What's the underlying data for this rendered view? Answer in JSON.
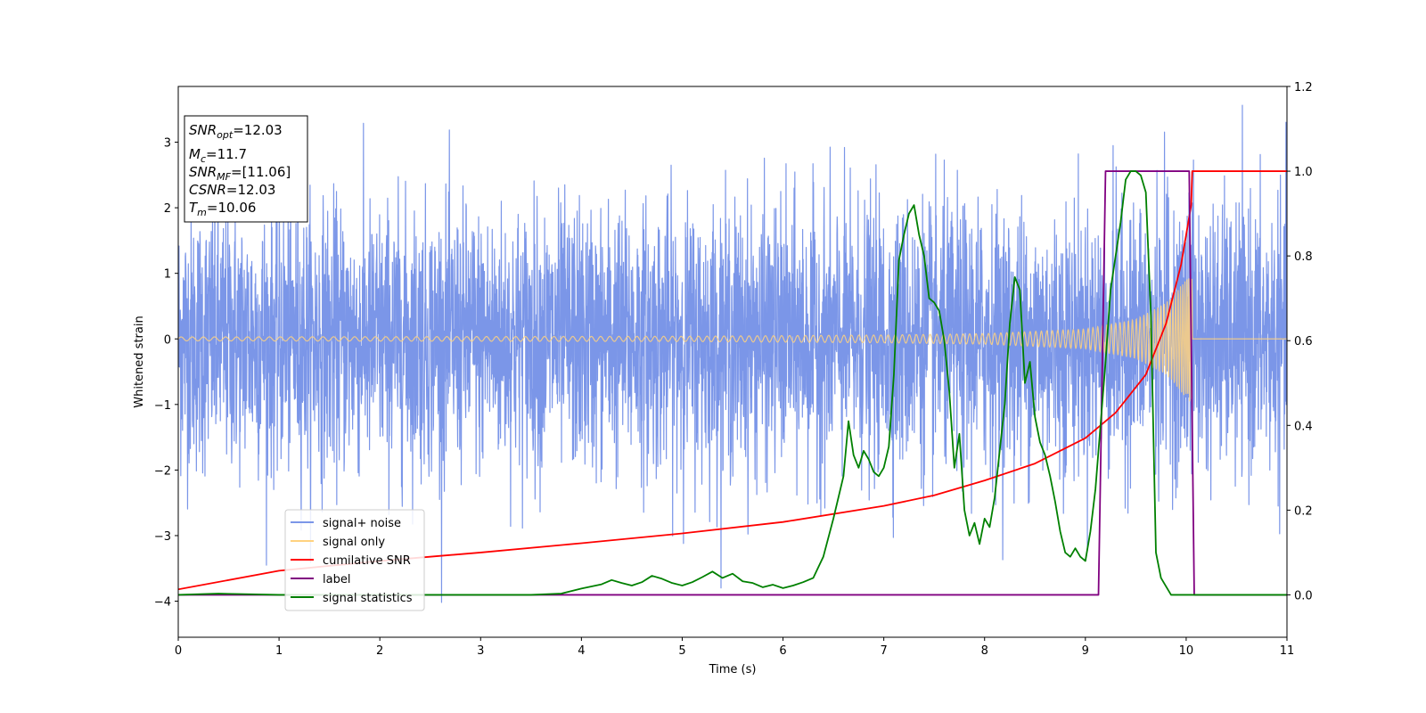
{
  "chart_data": {
    "type": "line",
    "xlabel": "Time (s)",
    "ylabel": "Whitened strain",
    "xlim": [
      0,
      11
    ],
    "ylim": [
      -4.55,
      3.85
    ],
    "y2lim": [
      -0.1,
      1.2
    ],
    "grid": false,
    "x_ticks": [
      "0",
      "1",
      "2",
      "3",
      "4",
      "5",
      "6",
      "7",
      "8",
      "9",
      "10",
      "11"
    ],
    "y_ticks": [
      "−4",
      "−3",
      "−2",
      "−1",
      "0",
      "1",
      "2",
      "3"
    ],
    "y2_ticks": [
      "0.0",
      "0.2",
      "0.4",
      "0.6",
      "0.8",
      "1.0",
      "1.2"
    ],
    "info_box": {
      "snr_opt_base": "SNR",
      "snr_opt_sub": "opt",
      "snr_opt_val": "=12.03",
      "mc_base": "M",
      "mc_sub": "c",
      "mc_val": "=11.7",
      "snr_mf_base": "SNR",
      "snr_mf_sub": "MF",
      "snr_mf_val": "=[11.06]",
      "csnr_base": "CSNR",
      "csnr_val": "=12.03",
      "tm_base": "T",
      "tm_sub": "m",
      "tm_val": "=10.06"
    },
    "legend": {
      "position": "lower-left",
      "entries": [
        {
          "label": "signal+ noise",
          "color": "#7b96e8"
        },
        {
          "label": "signal only",
          "color": "#ffd27f"
        },
        {
          "label": "cumilative SNR",
          "color": "#ff0000"
        },
        {
          "label": "label",
          "color": "#800080"
        },
        {
          "label": "signal statistics",
          "color": "#008000"
        }
      ]
    },
    "series": [
      {
        "name": "signal+ noise",
        "axis": "left",
        "color": "#7b96e8",
        "description_kind": "noise",
        "sigma": 1.0,
        "t_start": 0,
        "t_end": 11
      },
      {
        "name": "signal only",
        "axis": "left",
        "color": "#ffd27f",
        "merge_time": 10.06,
        "amplitude_envelope": [
          [
            0,
            0.03
          ],
          [
            5,
            0.04
          ],
          [
            7,
            0.06
          ],
          [
            8,
            0.08
          ],
          [
            9,
            0.15
          ],
          [
            9.5,
            0.3
          ],
          [
            9.8,
            0.55
          ],
          [
            10.0,
            0.9
          ],
          [
            10.06,
            1.0
          ]
        ]
      },
      {
        "name": "cumilative SNR",
        "axis": "right",
        "color": "#ff0000",
        "x": [
          0,
          1,
          2,
          3,
          4,
          5,
          6,
          7,
          7.5,
          8,
          8.5,
          9,
          9.3,
          9.6,
          9.8,
          9.95,
          10.05,
          10.06,
          11
        ],
        "values": [
          0.013,
          0.057,
          0.08,
          0.1,
          0.122,
          0.145,
          0.172,
          0.21,
          0.235,
          0.27,
          0.31,
          0.37,
          0.43,
          0.52,
          0.64,
          0.78,
          0.92,
          1.0,
          1.0
        ]
      },
      {
        "name": "label",
        "axis": "right",
        "color": "#800080",
        "x": [
          0,
          9.13,
          9.2,
          10.03,
          10.08,
          11
        ],
        "values": [
          0,
          0,
          1,
          1,
          0,
          0
        ]
      },
      {
        "name": "signal statistics",
        "axis": "right",
        "color": "#008000",
        "x": [
          0,
          0.4,
          0.6,
          1,
          2,
          2.6,
          3,
          3.5,
          3.8,
          4,
          4.1,
          4.2,
          4.3,
          4.4,
          4.5,
          4.6,
          4.7,
          4.8,
          4.9,
          5.0,
          5.1,
          5.2,
          5.3,
          5.4,
          5.5,
          5.6,
          5.7,
          5.8,
          5.9,
          6.0,
          6.1,
          6.2,
          6.3,
          6.4,
          6.5,
          6.6,
          6.65,
          6.7,
          6.75,
          6.8,
          6.85,
          6.9,
          6.95,
          7.0,
          7.05,
          7.1,
          7.15,
          7.2,
          7.25,
          7.3,
          7.35,
          7.4,
          7.45,
          7.5,
          7.55,
          7.6,
          7.65,
          7.7,
          7.75,
          7.8,
          7.85,
          7.9,
          7.95,
          8.0,
          8.05,
          8.1,
          8.15,
          8.2,
          8.25,
          8.3,
          8.35,
          8.4,
          8.45,
          8.5,
          8.55,
          8.6,
          8.65,
          8.7,
          8.75,
          8.8,
          8.85,
          8.9,
          8.95,
          9.0,
          9.05,
          9.1,
          9.15,
          9.2,
          9.25,
          9.3,
          9.35,
          9.4,
          9.45,
          9.5,
          9.55,
          9.6,
          9.65,
          9.7,
          9.75,
          9.8,
          9.85,
          9.9,
          9.95,
          10.0,
          10.05,
          10.1,
          10.15,
          10.2,
          10.3,
          11
        ],
        "values": [
          0.0,
          0.003,
          0.002,
          0.0,
          0.0,
          0.0,
          0.0,
          0.0,
          0.003,
          0.015,
          0.02,
          0.025,
          0.035,
          0.028,
          0.022,
          0.03,
          0.045,
          0.038,
          0.028,
          0.022,
          0.03,
          0.042,
          0.055,
          0.04,
          0.05,
          0.032,
          0.028,
          0.018,
          0.024,
          0.016,
          0.022,
          0.03,
          0.04,
          0.09,
          0.18,
          0.28,
          0.41,
          0.33,
          0.3,
          0.34,
          0.32,
          0.29,
          0.28,
          0.3,
          0.35,
          0.52,
          0.79,
          0.85,
          0.9,
          0.92,
          0.85,
          0.8,
          0.7,
          0.69,
          0.67,
          0.6,
          0.48,
          0.3,
          0.38,
          0.2,
          0.14,
          0.17,
          0.12,
          0.18,
          0.16,
          0.23,
          0.34,
          0.45,
          0.64,
          0.75,
          0.72,
          0.5,
          0.55,
          0.42,
          0.36,
          0.33,
          0.28,
          0.22,
          0.15,
          0.1,
          0.09,
          0.11,
          0.09,
          0.08,
          0.15,
          0.25,
          0.4,
          0.55,
          0.72,
          0.8,
          0.88,
          0.98,
          1.0,
          1.0,
          0.99,
          0.95,
          0.66,
          0.1,
          0.04,
          0.02,
          0.0,
          0.0,
          0.0,
          0.0,
          0.0,
          0.0,
          0.0,
          0.0,
          0.0,
          0.0
        ]
      }
    ]
  }
}
